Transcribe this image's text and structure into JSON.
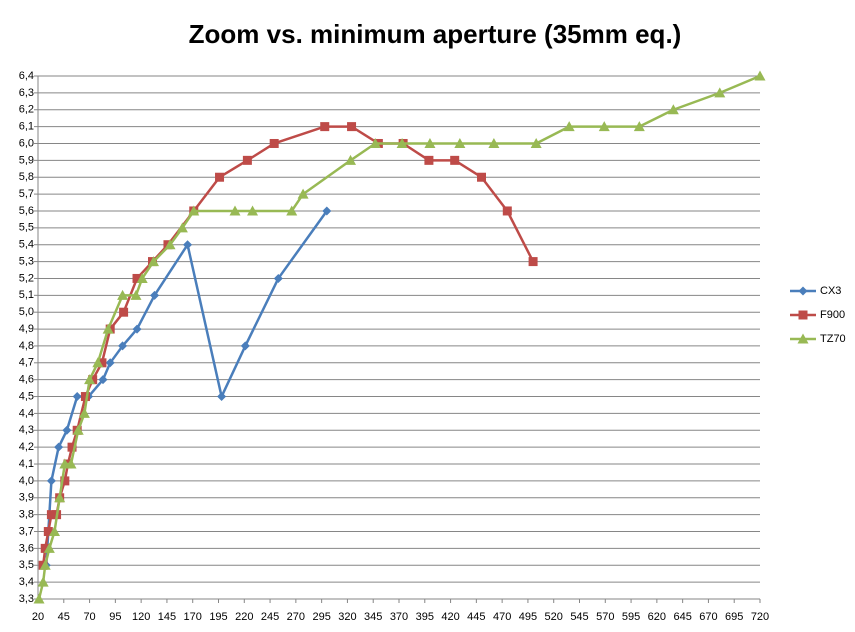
{
  "chart_data": {
    "type": "line",
    "title": "Zoom vs. minimum aperture (35mm eq.)",
    "xlim": [
      20,
      720
    ],
    "xticks": [
      20,
      45,
      70,
      95,
      120,
      145,
      170,
      195,
      220,
      245,
      270,
      295,
      320,
      345,
      370,
      395,
      420,
      445,
      470,
      495,
      520,
      545,
      570,
      595,
      620,
      645,
      670,
      695,
      720
    ],
    "ylim": [
      3.3,
      6.4
    ],
    "yticks": [
      {
        "value": 3.3,
        "label": "3,3"
      },
      {
        "value": 3.4,
        "label": "3,4"
      },
      {
        "value": 3.5,
        "label": "3,5"
      },
      {
        "value": 3.6,
        "label": "3,6"
      },
      {
        "value": 3.7,
        "label": "3,7"
      },
      {
        "value": 3.8,
        "label": "3,8"
      },
      {
        "value": 3.9,
        "label": "3,9"
      },
      {
        "value": 4.0,
        "label": "4,0"
      },
      {
        "value": 4.1,
        "label": "4,1"
      },
      {
        "value": 4.2,
        "label": "4,2"
      },
      {
        "value": 4.3,
        "label": "4,3"
      },
      {
        "value": 4.4,
        "label": "4,4"
      },
      {
        "value": 4.5,
        "label": "4,5"
      },
      {
        "value": 4.6,
        "label": "4,6"
      },
      {
        "value": 4.7,
        "label": "4,7"
      },
      {
        "value": 4.8,
        "label": "4,8"
      },
      {
        "value": 4.9,
        "label": "4,9"
      },
      {
        "value": 5.0,
        "label": "5,0"
      },
      {
        "value": 5.1,
        "label": "5,1"
      },
      {
        "value": 5.2,
        "label": "5,2"
      },
      {
        "value": 5.3,
        "label": "5,3"
      },
      {
        "value": 5.4,
        "label": "5,4"
      },
      {
        "value": 5.5,
        "label": "5,5"
      },
      {
        "value": 5.6,
        "label": "5,6"
      },
      {
        "value": 5.7,
        "label": "5,7"
      },
      {
        "value": 5.8,
        "label": "5,8"
      },
      {
        "value": 5.9,
        "label": "5,9"
      },
      {
        "value": 6.0,
        "label": "6,0"
      },
      {
        "value": 6.1,
        "label": "6,1"
      },
      {
        "value": 6.2,
        "label": "6,2"
      },
      {
        "value": 6.3,
        "label": "6,3"
      },
      {
        "value": 6.4,
        "label": "6,4"
      }
    ],
    "grid": true,
    "legend": "right",
    "series": [
      {
        "name": "CX3",
        "color": "#4a7ebb",
        "marker": "diamond",
        "x": [
          28,
          33,
          40,
          48,
          58,
          69,
          83,
          90,
          102,
          116,
          133,
          165,
          198,
          221,
          253,
          300
        ],
        "values": [
          3.5,
          4.0,
          4.2,
          4.3,
          4.5,
          4.5,
          4.6,
          4.7,
          4.8,
          4.9,
          5.1,
          5.4,
          4.5,
          4.8,
          5.2,
          5.6
        ]
      },
      {
        "name": "F900",
        "color": "#be4b48",
        "marker": "square",
        "x": [
          25,
          27,
          30,
          33,
          38,
          41,
          46,
          49,
          53,
          58,
          66,
          73,
          82,
          90,
          103,
          116,
          131,
          146,
          171,
          196,
          223,
          249,
          298,
          324,
          350,
          374,
          399,
          424,
          450,
          475,
          500
        ],
        "values": [
          3.5,
          3.6,
          3.7,
          3.8,
          3.8,
          3.9,
          4.0,
          4.1,
          4.2,
          4.3,
          4.5,
          4.6,
          4.7,
          4.9,
          5.0,
          5.2,
          5.3,
          5.4,
          5.6,
          5.8,
          5.9,
          6.0,
          6.1,
          6.1,
          6.0,
          6.0,
          5.9,
          5.9,
          5.8,
          5.6,
          5.3
        ]
      },
      {
        "name": "TZ70",
        "color": "#98b954",
        "marker": "triangle",
        "x": [
          21,
          25,
          27,
          31,
          36,
          41,
          46,
          52,
          59,
          65,
          70,
          78,
          88,
          102,
          115,
          121,
          132,
          148,
          160,
          171,
          211,
          228,
          266,
          277,
          323,
          347,
          373,
          400,
          429,
          462,
          503,
          535,
          569,
          603,
          636,
          681,
          720
        ],
        "values": [
          3.3,
          3.4,
          3.5,
          3.6,
          3.7,
          3.9,
          4.1,
          4.1,
          4.3,
          4.4,
          4.6,
          4.7,
          4.9,
          5.1,
          5.1,
          5.2,
          5.3,
          5.4,
          5.5,
          5.6,
          5.6,
          5.6,
          5.6,
          5.7,
          5.9,
          6.0,
          6.0,
          6.0,
          6.0,
          6.0,
          6.0,
          6.1,
          6.1,
          6.1,
          6.2,
          6.3,
          6.4
        ]
      }
    ]
  }
}
